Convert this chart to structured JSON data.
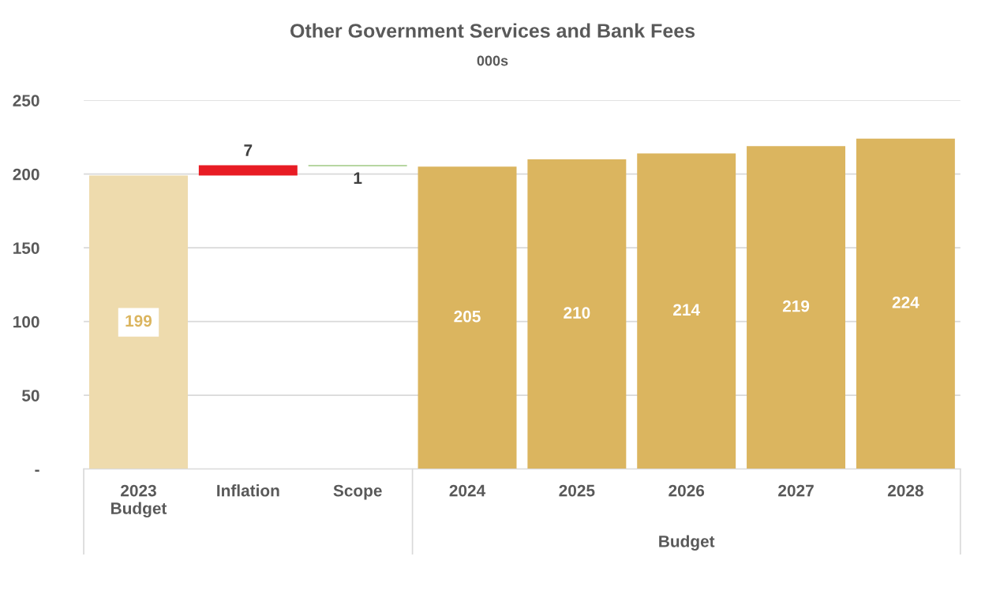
{
  "chart_data": {
    "type": "bar",
    "title": "Other Government Services and Bank Fees",
    "subtitle": "000s",
    "categories": [
      "2023\nBudget",
      "Inflation",
      "Scope",
      "2024",
      "2025",
      "2026",
      "2027",
      "2028"
    ],
    "values": [
      199,
      7,
      -0.5,
      205,
      210,
      214,
      219,
      224
    ],
    "base": [
      0,
      199,
      206,
      0,
      0,
      0,
      0,
      0
    ],
    "colors": [
      "#eedbad",
      "#e81c24",
      "#70ad47",
      "#dbb55f",
      "#dbb55f",
      "#dbb55f",
      "#dbb55f",
      "#dbb55f"
    ],
    "value_labels": [
      "199",
      "7",
      "1",
      "205",
      "210",
      "214",
      "219",
      "224"
    ],
    "annotations": [
      "Budget"
    ],
    "ylim": [
      0,
      250
    ],
    "yticks": [
      {
        "value": 0,
        "label": "-"
      },
      50,
      100,
      150,
      200,
      250
    ],
    "grid": "y"
  }
}
